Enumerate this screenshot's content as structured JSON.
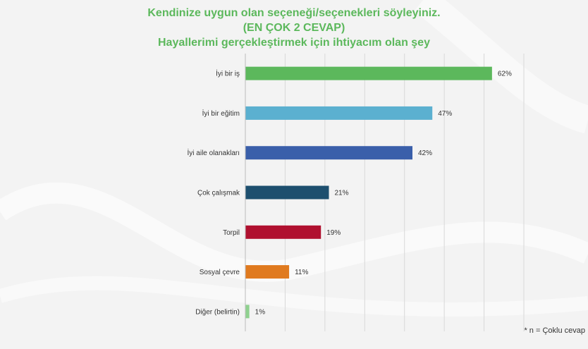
{
  "chart_data": {
    "type": "bar",
    "orientation": "horizontal",
    "title": "Kendinize uygun olan seçeneği/seçenekleri söyleyiniz.",
    "subtitle": "(EN ÇOK 2 CEVAP)",
    "subtitle2": "Hayallerimi gerçekleştirmek için ihtiyacım olan şey",
    "categories": [
      "İyi bir iş",
      "İyi bir eğitim",
      "İyi aile olanakları",
      "Çok çalışmak",
      "Torpil",
      "Sosyal çevre",
      "Diğer (belirtin)"
    ],
    "values": [
      62,
      47,
      42,
      21,
      19,
      11,
      1
    ],
    "value_labels": [
      "62%",
      "47%",
      "42%",
      "21%",
      "19%",
      "11%",
      "1%"
    ],
    "colors": [
      "#5cb85c",
      "#5bb0d0",
      "#3a5faa",
      "#1d4f6e",
      "#b0102f",
      "#e07a1f",
      "#8fd18f"
    ],
    "xlim": [
      0,
      70
    ],
    "grid": true,
    "legend": "none"
  },
  "footnote": "* n = Çoklu cevap"
}
